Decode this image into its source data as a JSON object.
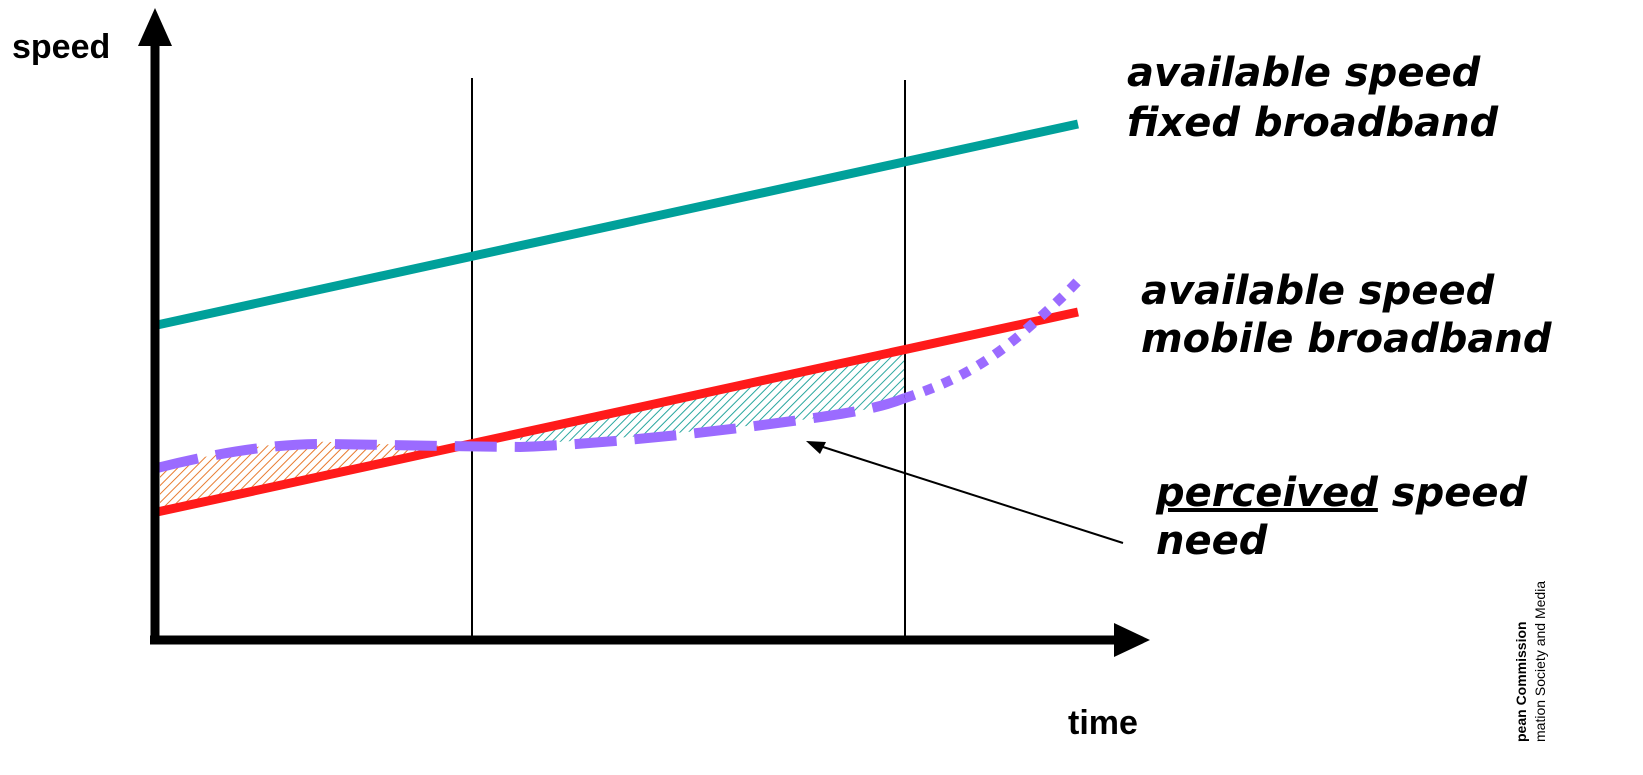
{
  "axes": {
    "y_label": "speed",
    "x_label": "time"
  },
  "labels": {
    "fixed": {
      "line1": "available speed",
      "line2": "fixed broadband"
    },
    "mobile": {
      "line1": "available speed",
      "line2": "mobile broadband"
    },
    "perceived": {
      "underlined_part": "perceived",
      "rest": " speed",
      "line2": "need"
    }
  },
  "footer": {
    "org": "pean Commission",
    "dept": "mation Society and Media"
  },
  "colors": {
    "fixed": "#00a09a",
    "mobile": "#ff1a1a",
    "perceived": "#9b6bff",
    "hatch_orange": "#e87a2e",
    "hatch_teal": "#2aa79f"
  }
}
